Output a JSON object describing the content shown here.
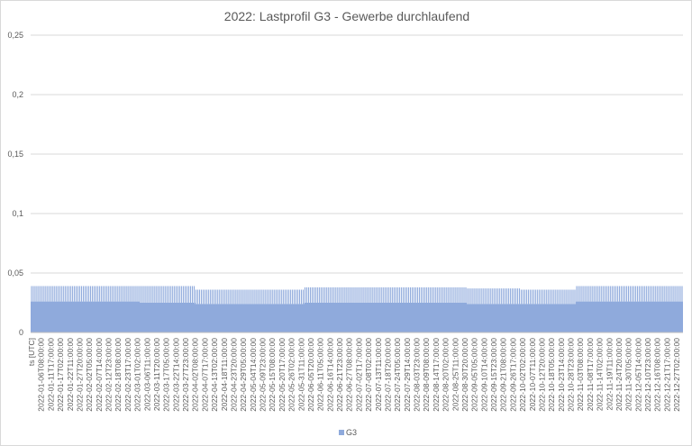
{
  "chart_data": {
    "type": "area",
    "title": "2022: Lastprofil G3 - Gewerbe durchlaufend",
    "xlabel": "",
    "ylabel": "",
    "ylim": [
      0,
      0.25
    ],
    "y_ticks": [
      "0",
      "0,05",
      "0,1",
      "0,15",
      "0,2",
      "0,25"
    ],
    "y_tick_values": [
      0,
      0.05,
      0.1,
      0.15,
      0.2,
      0.25
    ],
    "grid": true,
    "legend": "bottom",
    "x_tick_labels": [
      "ts [UTC]",
      "2022-01-06T08:00:00",
      "2022-01-11T17:00:00",
      "2022-01-17T02:00:00",
      "2022-01-22T11:00:00",
      "2022-01-27T20:00:00",
      "2022-02-02T05:00:00",
      "2022-02-07T14:00:00",
      "2022-02-12T23:00:00",
      "2022-02-18T08:00:00",
      "2022-02-23T17:00:00",
      "2022-03-01T02:00:00",
      "2022-03-06T11:00:00",
      "2022-03-11T20:00:00",
      "2022-03-17T05:00:00",
      "2022-03-22T14:00:00",
      "2022-03-27T23:00:00",
      "2022-04-02T08:00:00",
      "2022-04-07T17:00:00",
      "2022-04-13T02:00:00",
      "2022-04-18T11:00:00",
      "2022-04-23T20:00:00",
      "2022-04-29T05:00:00",
      "2022-05-04T14:00:00",
      "2022-05-09T23:00:00",
      "2022-05-15T08:00:00",
      "2022-05-20T17:00:00",
      "2022-05-26T02:00:00",
      "2022-05-31T11:00:00",
      "2022-06-05T20:00:00",
      "2022-06-11T05:00:00",
      "2022-06-16T14:00:00",
      "2022-06-21T23:00:00",
      "2022-06-27T08:00:00",
      "2022-07-02T17:00:00",
      "2022-07-08T02:00:00",
      "2022-07-13T11:00:00",
      "2022-07-18T20:00:00",
      "2022-07-24T05:00:00",
      "2022-07-29T14:00:00",
      "2022-08-03T23:00:00",
      "2022-08-09T08:00:00",
      "2022-08-14T17:00:00",
      "2022-08-20T02:00:00",
      "2022-08-25T11:00:00",
      "2022-08-30T20:00:00",
      "2022-09-05T05:00:00",
      "2022-09-10T14:00:00",
      "2022-09-15T23:00:00",
      "2022-09-21T08:00:00",
      "2022-09-26T17:00:00",
      "2022-10-02T02:00:00",
      "2022-10-07T11:00:00",
      "2022-10-12T20:00:00",
      "2022-10-18T05:00:00",
      "2022-10-23T14:00:00",
      "2022-10-28T23:00:00",
      "2022-11-03T08:00:00",
      "2022-11-08T17:00:00",
      "2022-11-14T02:00:00",
      "2022-11-19T11:00:00",
      "2022-11-24T20:00:00",
      "2022-11-30T05:00:00",
      "2022-12-05T14:00:00",
      "2022-12-10T23:00:00",
      "2022-12-16T08:00:00",
      "2022-12-21T17:00:00",
      "2022-12-27T02:00:00"
    ],
    "x_range": [
      "2022-01-01",
      "2022-12-31"
    ],
    "series": [
      {
        "name": "G3",
        "color": "#8faadc",
        "description_values": {
          "base_level_range": [
            0.022,
            0.027
          ],
          "daily_peak_range": [
            0.035,
            0.039
          ]
        },
        "monthly_peak": [
          0.039,
          0.039,
          0.039,
          0.036,
          0.036,
          0.038,
          0.038,
          0.038,
          0.037,
          0.036,
          0.039,
          0.039
        ],
        "monthly_base": [
          0.026,
          0.026,
          0.025,
          0.024,
          0.024,
          0.025,
          0.025,
          0.025,
          0.024,
          0.024,
          0.026,
          0.026
        ]
      }
    ]
  }
}
